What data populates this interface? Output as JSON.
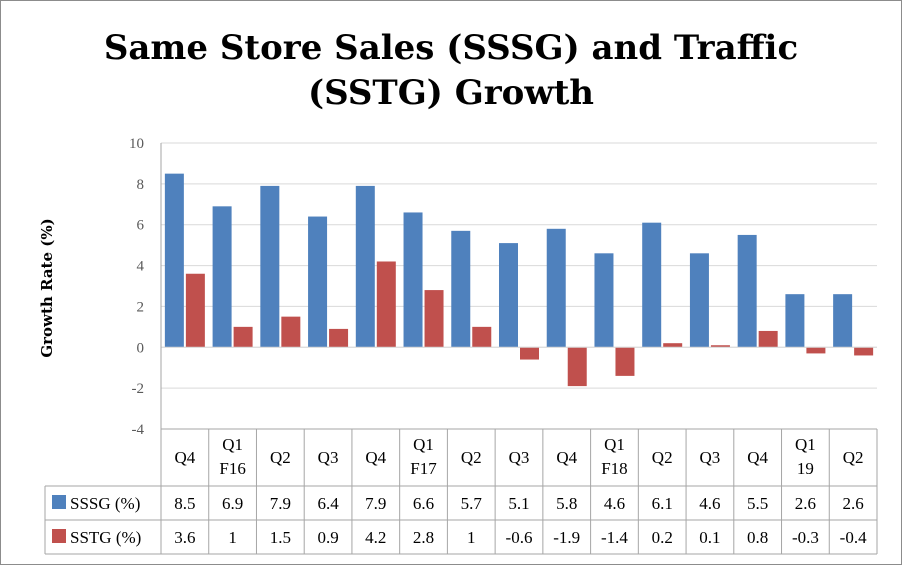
{
  "chart_data": {
    "type": "bar",
    "title_line1": "Same Store Sales (SSSG) and Traffic",
    "title_line2": "(SSTG) Growth",
    "ylabel": "Growth Rate (%)",
    "xlabel": "",
    "ylim": [
      -4,
      10
    ],
    "yticks": [
      10,
      8,
      6,
      4,
      2,
      0,
      -2,
      -4
    ],
    "grid": true,
    "categories": [
      [
        "Q4"
      ],
      [
        "Q1",
        "F16"
      ],
      [
        "Q2"
      ],
      [
        "Q3"
      ],
      [
        "Q4"
      ],
      [
        "Q1",
        "F17"
      ],
      [
        "Q2"
      ],
      [
        "Q3"
      ],
      [
        "Q4"
      ],
      [
        "Q1",
        "F18"
      ],
      [
        "Q2"
      ],
      [
        "Q3"
      ],
      [
        "Q4"
      ],
      [
        "Q1",
        "19"
      ],
      [
        "Q2"
      ]
    ],
    "series": [
      {
        "name": "SSSG (%)",
        "color": "#4f81bd",
        "values": [
          8.5,
          6.9,
          7.9,
          6.4,
          7.9,
          6.6,
          5.7,
          5.1,
          5.8,
          4.6,
          6.1,
          4.6,
          5.5,
          2.6,
          2.6
        ],
        "labels": [
          "8.5",
          "6.9",
          "7.9",
          "6.4",
          "7.9",
          "6.6",
          "5.7",
          "5.1",
          "5.8",
          "4.6",
          "6.1",
          "4.6",
          "5.5",
          "2.6",
          "2.6"
        ]
      },
      {
        "name": "SSTG (%)",
        "color": "#c0504d",
        "values": [
          3.6,
          1,
          1.5,
          0.9,
          4.2,
          2.8,
          1,
          -0.6,
          -1.9,
          -1.4,
          0.2,
          0.1,
          0.8,
          -0.3,
          -0.4
        ],
        "labels": [
          "3.6",
          "1",
          "1.5",
          "0.9",
          "4.2",
          "2.8",
          "1",
          "-0.6",
          "-1.9",
          "-1.4",
          "0.2",
          "0.1",
          "0.8",
          "-0.3",
          "-0.4"
        ]
      }
    ]
  }
}
